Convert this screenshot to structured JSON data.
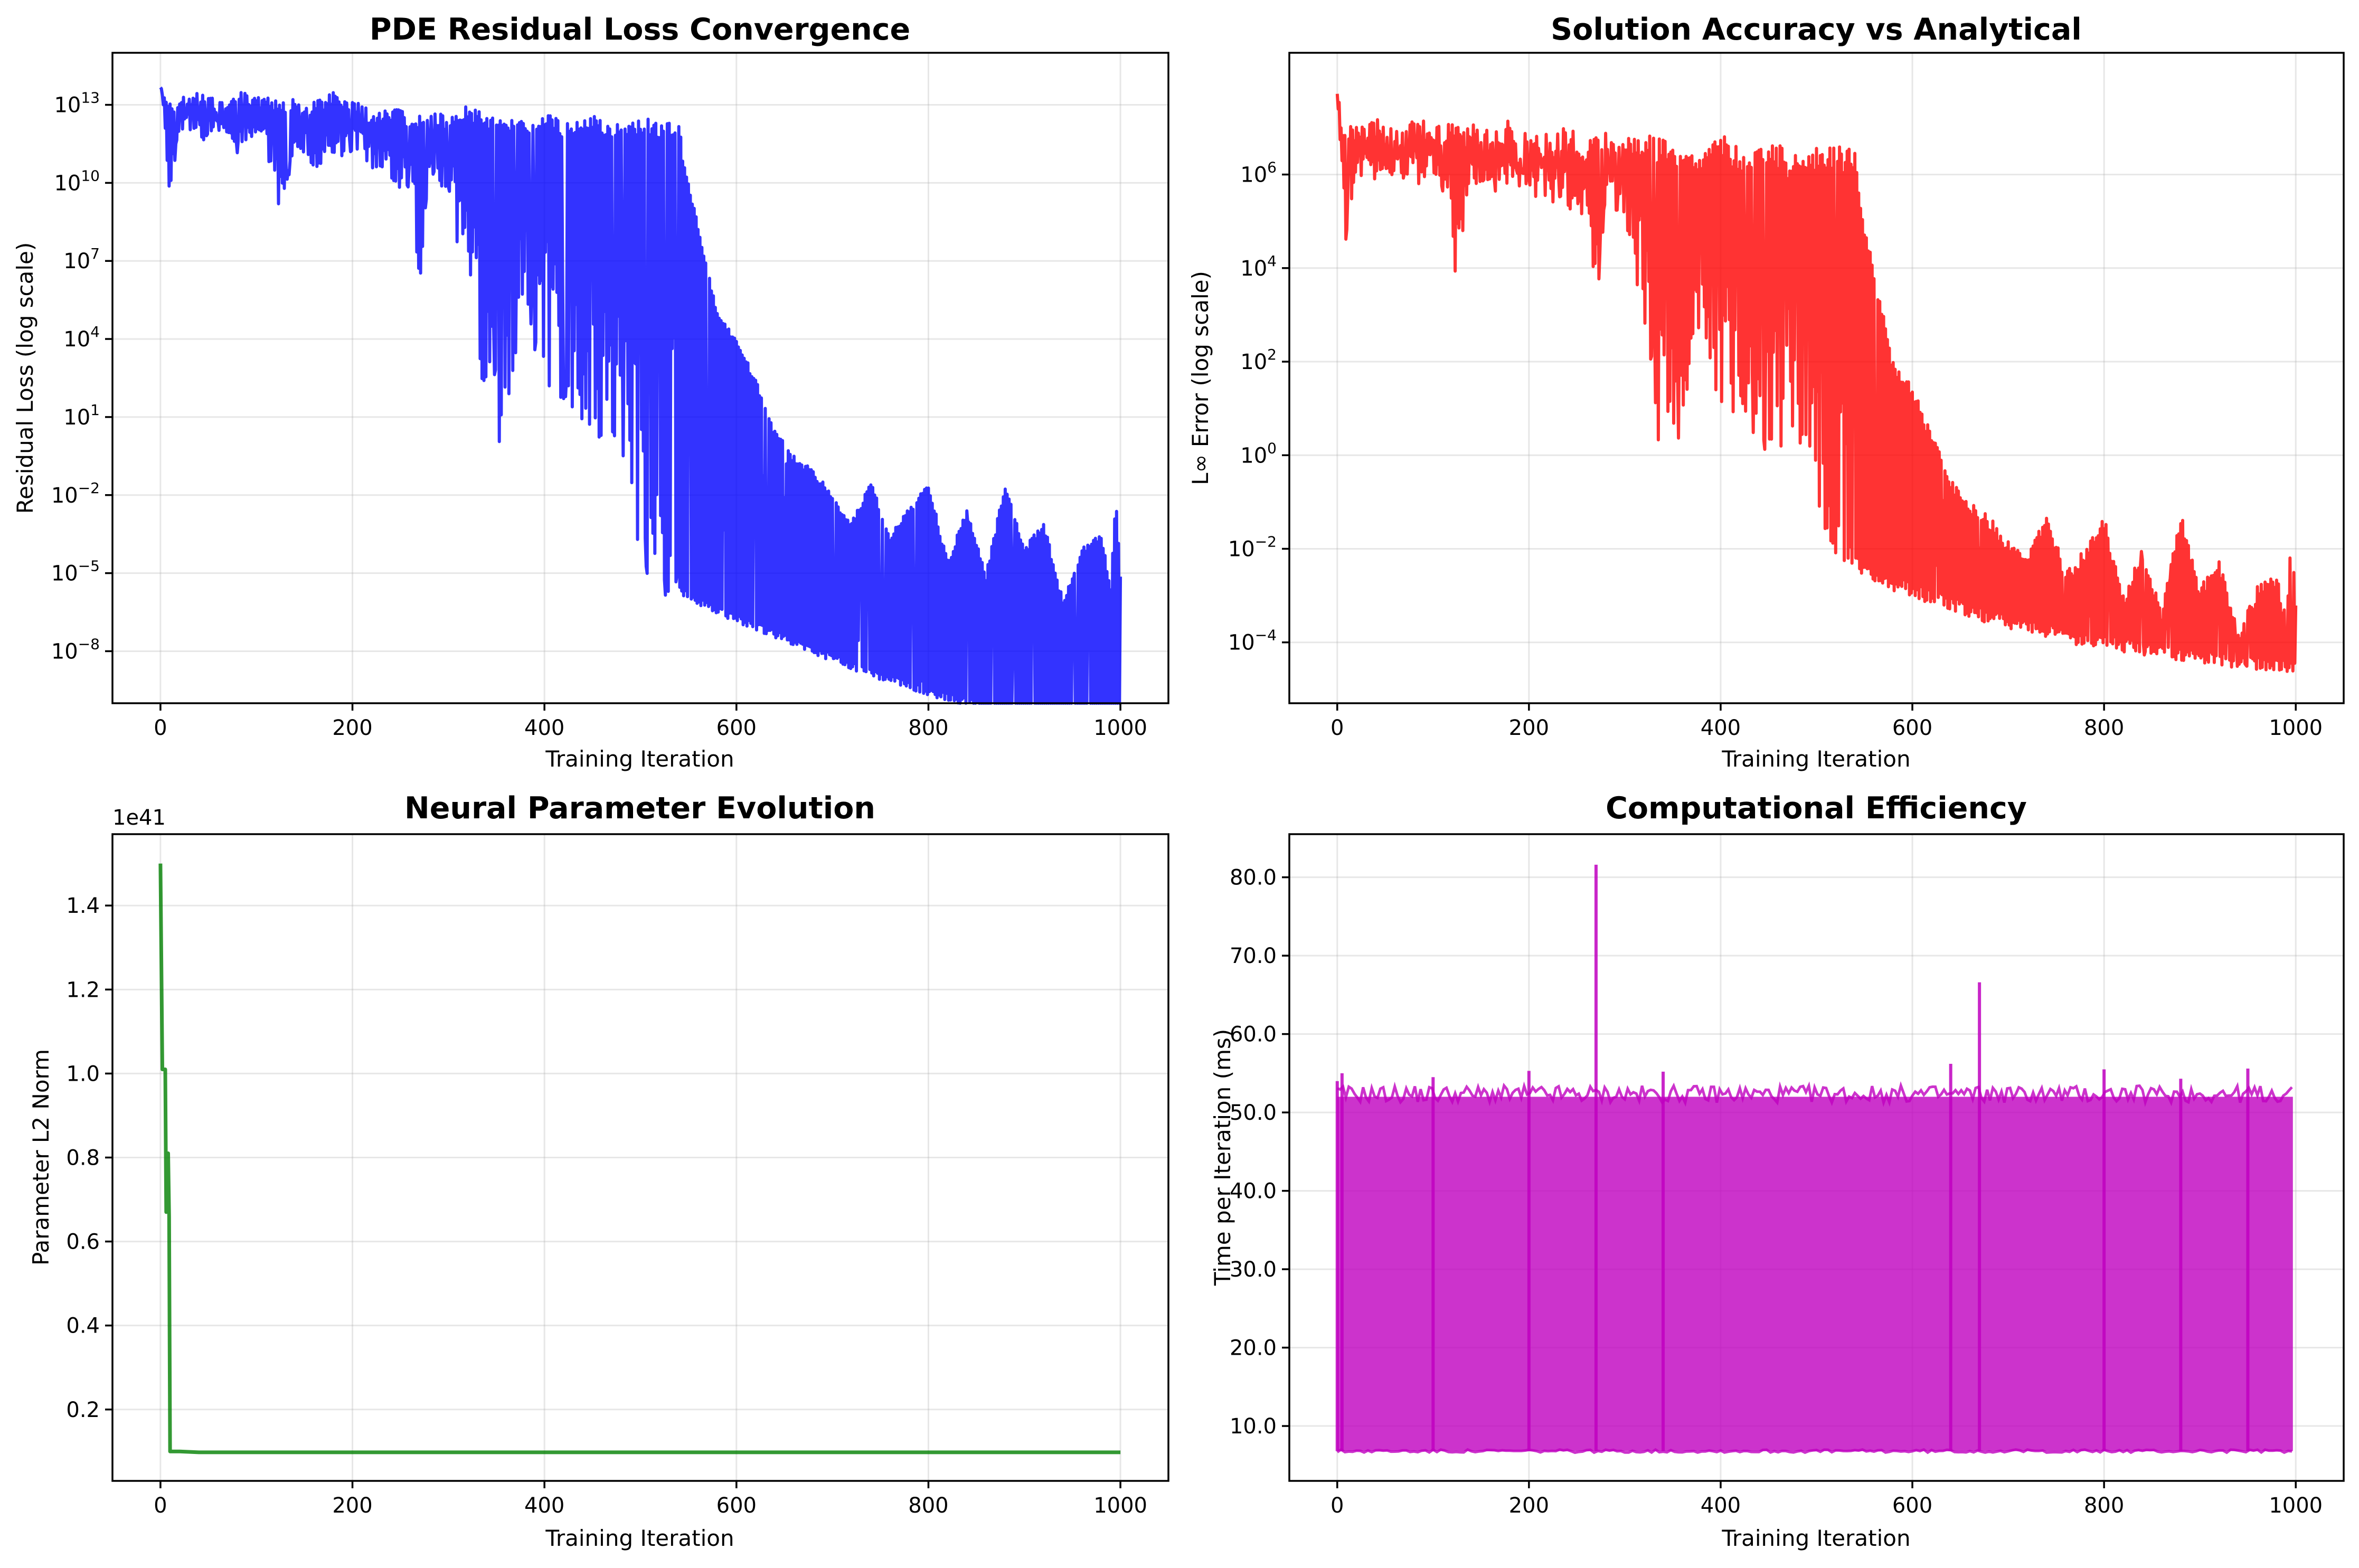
{
  "chart_data": [
    {
      "id": "residual",
      "type": "line",
      "title": "PDE Residual Loss Convergence",
      "xlabel": "Training Iteration",
      "ylabel": "Residual Loss (log scale)",
      "yscale": "log",
      "grid": true,
      "color": "#0000ff",
      "xlim": [
        -50,
        1050
      ],
      "ylim": [
        1e-10,
        1000000000000000.0
      ],
      "xticks": [
        0,
        200,
        400,
        600,
        800,
        1000
      ],
      "yticks": [
        {
          "value": 1e-08,
          "base": "10",
          "exp": "−8"
        },
        {
          "value": 1e-05,
          "base": "10",
          "exp": "−5"
        },
        {
          "value": 0.01,
          "base": "10",
          "exp": "−2"
        },
        {
          "value": 10.0,
          "base": "10",
          "exp": "1"
        },
        {
          "value": 10000.0,
          "base": "10",
          "exp": "4"
        },
        {
          "value": 10000000.0,
          "base": "10",
          "exp": "7"
        },
        {
          "value": 10000000000.0,
          "base": "10",
          "exp": "10"
        },
        {
          "value": 10000000000000.0,
          "base": "10",
          "exp": "13"
        }
      ],
      "x": [
        0,
        5,
        8,
        20,
        40,
        60,
        80,
        100,
        120,
        122,
        140,
        160,
        180,
        200,
        220,
        240,
        260,
        270,
        280,
        300,
        320,
        330,
        335,
        350,
        352,
        380,
        400,
        420,
        450,
        470,
        490,
        500,
        505,
        520,
        540,
        545,
        560,
        580,
        600,
        620,
        640,
        660,
        680,
        700,
        720,
        740,
        760,
        780,
        800,
        820,
        840,
        860,
        880,
        900,
        920,
        940,
        960,
        980,
        990,
        995,
        1000
      ],
      "envelope_upper_log10": [
        14.2,
        13.5,
        13.0,
        13.3,
        13.5,
        13.2,
        13.6,
        13.4,
        13.2,
        13.0,
        13.3,
        13.1,
        13.5,
        13.2,
        12.8,
        13.0,
        12.6,
        12.7,
        12.9,
        12.5,
        13.0,
        12.8,
        12.7,
        12.6,
        12.5,
        12.4,
        12.8,
        12.3,
        12.6,
        12.2,
        12.5,
        12.4,
        12.5,
        12.3,
        12.4,
        10.8,
        8.5,
        5.0,
        4.0,
        2.5,
        0.5,
        -0.5,
        -1.0,
        -2.0,
        -3.0,
        -1.5,
        -3.5,
        -2.5,
        -1.5,
        -4.5,
        -2.5,
        -5.0,
        -1.5,
        -4.0,
        -3.0,
        -6.0,
        -4.0,
        -3.5,
        -5.5,
        -2.0,
        -5.0
      ],
      "envelope_lower_log10": [
        14.0,
        12.0,
        9.0,
        12.0,
        11.5,
        12.0,
        11.0,
        12.0,
        10.0,
        7.5,
        11.5,
        10.5,
        11.0,
        11.0,
        10.5,
        10.0,
        9.5,
        6.0,
        10.5,
        9.5,
        5.0,
        3.0,
        1.0,
        2.5,
        -0.5,
        5.0,
        2.0,
        1.5,
        0.0,
        0.5,
        -1.5,
        -5.5,
        -5.0,
        -6.0,
        -5.5,
        -5.9,
        -6.2,
        -6.6,
        -6.9,
        -7.2,
        -7.5,
        -7.8,
        -8.1,
        -8.4,
        -8.7,
        -9.0,
        -9.2,
        -9.5,
        -9.7,
        -9.9,
        -10.1,
        -10.3,
        -10.5,
        -10.7,
        -10.9,
        -11.0,
        -11.1,
        -11.2,
        -11.3,
        -11.3,
        -11.2
      ]
    },
    {
      "id": "accuracy",
      "type": "line",
      "title": "Solution Accuracy vs Analytical",
      "xlabel": "Training Iteration",
      "ylabel": "L∞ Error (log scale)",
      "yscale": "log",
      "grid": true,
      "color": "#ff0000",
      "xlim": [
        -50,
        1050
      ],
      "ylim": [
        5e-06,
        400000000.0
      ],
      "xticks": [
        0,
        200,
        400,
        600,
        800,
        1000
      ],
      "yticks": [
        {
          "value": 0.0001,
          "base": "10",
          "exp": "−4"
        },
        {
          "value": 0.01,
          "base": "10",
          "exp": "−2"
        },
        {
          "value": 1.0,
          "base": "10",
          "exp": "0"
        },
        {
          "value": 100.0,
          "base": "10",
          "exp": "2"
        },
        {
          "value": 10000.0,
          "base": "10",
          "exp": "4"
        },
        {
          "value": 1000000.0,
          "base": "10",
          "exp": "6"
        }
      ],
      "x": [
        0,
        5,
        8,
        20,
        40,
        60,
        80,
        100,
        120,
        122,
        140,
        160,
        180,
        200,
        220,
        240,
        260,
        270,
        280,
        300,
        320,
        330,
        335,
        350,
        352,
        380,
        400,
        420,
        450,
        470,
        490,
        500,
        505,
        520,
        540,
        545,
        560,
        580,
        600,
        620,
        640,
        660,
        680,
        700,
        720,
        740,
        760,
        780,
        800,
        820,
        840,
        860,
        880,
        900,
        920,
        940,
        960,
        980,
        990,
        995,
        1000
      ],
      "envelope_upper_log10": [
        7.8,
        7.3,
        7.0,
        7.1,
        7.3,
        7.0,
        7.3,
        7.2,
        7.1,
        7.0,
        7.2,
        7.0,
        7.2,
        7.0,
        6.9,
        7.0,
        6.8,
        6.9,
        6.9,
        6.8,
        7.0,
        6.9,
        6.8,
        6.8,
        6.7,
        6.7,
        6.9,
        6.6,
        6.8,
        6.5,
        6.7,
        6.6,
        6.7,
        6.6,
        6.6,
        5.5,
        4.0,
        2.0,
        1.5,
        0.5,
        -0.5,
        -1.0,
        -1.3,
        -1.8,
        -2.2,
        -1.2,
        -2.5,
        -2.0,
        -1.3,
        -3.0,
        -2.0,
        -3.3,
        -1.2,
        -2.8,
        -2.2,
        -3.8,
        -2.8,
        -2.5,
        -3.5,
        -1.6,
        -3.0
      ],
      "envelope_lower_log10": [
        7.6,
        6.0,
        4.2,
        6.0,
        5.8,
        6.0,
        5.6,
        6.0,
        5.2,
        3.7,
        5.8,
        5.4,
        5.6,
        5.6,
        5.4,
        5.2,
        5.0,
        2.8,
        5.4,
        5.0,
        2.6,
        1.5,
        0.1,
        1.3,
        -0.2,
        2.5,
        1.0,
        0.8,
        0.0,
        0.2,
        -0.8,
        -2.2,
        -2.0,
        -2.5,
        -2.4,
        -2.5,
        -2.7,
        -2.9,
        -3.0,
        -3.2,
        -3.3,
        -3.5,
        -3.6,
        -3.7,
        -3.8,
        -3.9,
        -4.0,
        -4.1,
        -4.15,
        -4.2,
        -4.3,
        -4.35,
        -4.4,
        -4.45,
        -4.5,
        -4.55,
        -4.6,
        -4.6,
        -4.65,
        -4.65,
        -4.6
      ]
    },
    {
      "id": "params",
      "type": "line",
      "title": "Neural Parameter Evolution",
      "xlabel": "Training Iteration",
      "ylabel": "Parameter L2 Norm",
      "offset_label": "1e41",
      "yscale": "linear",
      "grid": true,
      "color": "#008000",
      "xlim": [
        -50,
        1050
      ],
      "ylim": [
        0.03,
        1.57
      ],
      "xticks": [
        0,
        200,
        400,
        600,
        800,
        1000
      ],
      "yticks": [
        0.2,
        0.4,
        0.6,
        0.8,
        1.0,
        1.2,
        1.4
      ],
      "x": [
        0,
        2,
        3,
        5,
        6,
        7,
        8,
        9,
        10,
        12,
        20,
        40,
        100,
        200,
        400,
        600,
        800,
        1000
      ],
      "y": [
        1.5,
        1.01,
        1.01,
        1.01,
        0.67,
        0.81,
        0.81,
        0.66,
        0.1,
        0.1,
        0.1,
        0.098,
        0.098,
        0.098,
        0.098,
        0.098,
        0.098,
        0.098
      ]
    },
    {
      "id": "efficiency",
      "type": "line",
      "title": "Computational Efficiency",
      "xlabel": "Training Iteration",
      "ylabel": "Time per Iteration (ms)",
      "yscale": "linear",
      "grid": true,
      "color": "#bf00bf",
      "xlim": [
        -50,
        1050
      ],
      "ylim": [
        3,
        85.5
      ],
      "xticks": [
        0,
        200,
        400,
        600,
        800,
        1000
      ],
      "yticks": [
        10,
        20,
        30,
        40,
        50,
        60,
        70,
        80
      ],
      "band_low": 6.8,
      "band_high": 52,
      "spikes": [
        {
          "x": 0,
          "y": 54
        },
        {
          "x": 5,
          "y": 55
        },
        {
          "x": 100,
          "y": 54.5
        },
        {
          "x": 200,
          "y": 55.3
        },
        {
          "x": 270,
          "y": 81.6
        },
        {
          "x": 340,
          "y": 55.2
        },
        {
          "x": 640,
          "y": 56.2
        },
        {
          "x": 670,
          "y": 66.6
        },
        {
          "x": 800,
          "y": 55.5
        },
        {
          "x": 880,
          "y": 54.3
        },
        {
          "x": 950,
          "y": 55.6
        }
      ]
    }
  ]
}
